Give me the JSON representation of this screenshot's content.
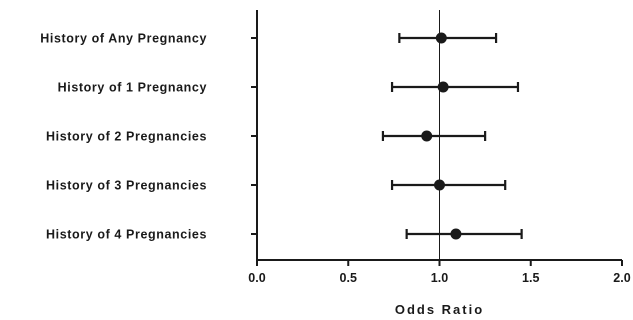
{
  "chart_data": {
    "type": "forest",
    "xlabel": "Odds Ratio",
    "xlim": [
      0.0,
      2.0
    ],
    "xticks": [
      "0.0",
      "0.5",
      "1.0",
      "1.5",
      "2.0"
    ],
    "reference_line": 1.0,
    "rows": [
      {
        "label": "History of Any Pregnancy",
        "estimate": 1.01,
        "lower": 0.78,
        "upper": 1.31
      },
      {
        "label": "History of 1 Pregnancy",
        "estimate": 1.02,
        "lower": 0.74,
        "upper": 1.43
      },
      {
        "label": "History of 2 Pregnancies",
        "estimate": 0.93,
        "lower": 0.69,
        "upper": 1.25
      },
      {
        "label": "History of 3 Pregnancies",
        "estimate": 1.0,
        "lower": 0.74,
        "upper": 1.36
      },
      {
        "label": "History of  4 Pregnancies",
        "estimate": 1.09,
        "lower": 0.82,
        "upper": 1.45
      }
    ],
    "grid": false,
    "legend": "none"
  }
}
